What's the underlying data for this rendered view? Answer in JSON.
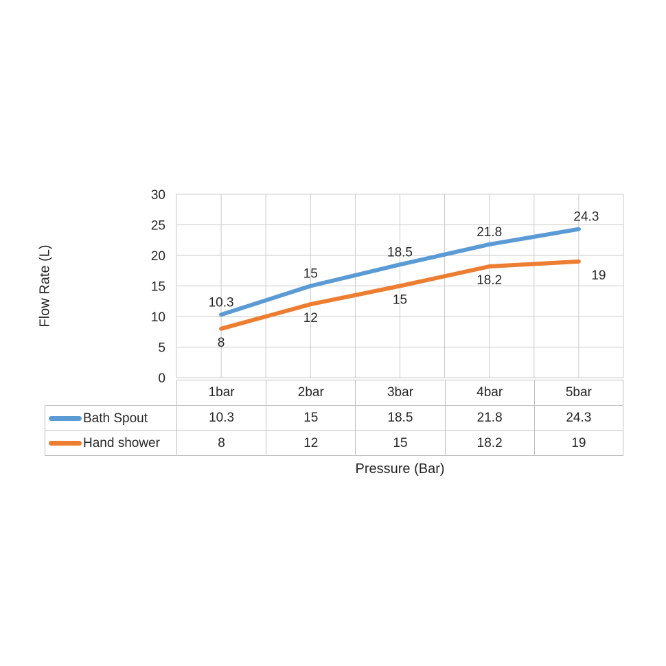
{
  "chart_data": {
    "type": "line",
    "title": "",
    "xlabel": "Pressure (Bar)",
    "ylabel": "Flow Rate (L)",
    "categories": [
      "1bar",
      "2bar",
      "3bar",
      "4bar",
      "5bar"
    ],
    "series": [
      {
        "name": "Bath Spout",
        "color": "#5B9BD5",
        "values": [
          10.3,
          15,
          18.5,
          21.8,
          24.3
        ],
        "label_position": "above"
      },
      {
        "name": "Hand shower",
        "color": "#ED7D31",
        "values": [
          8,
          12,
          15,
          18.2,
          19
        ],
        "label_position": "below"
      }
    ],
    "ylim": [
      0,
      30
    ],
    "ystep": 5,
    "grid": true,
    "legend_position": "table-left",
    "data_table": true
  },
  "colors": {
    "gridline": "#c9c9c9",
    "table_border": "#bfbfbf",
    "text": "#262626"
  }
}
